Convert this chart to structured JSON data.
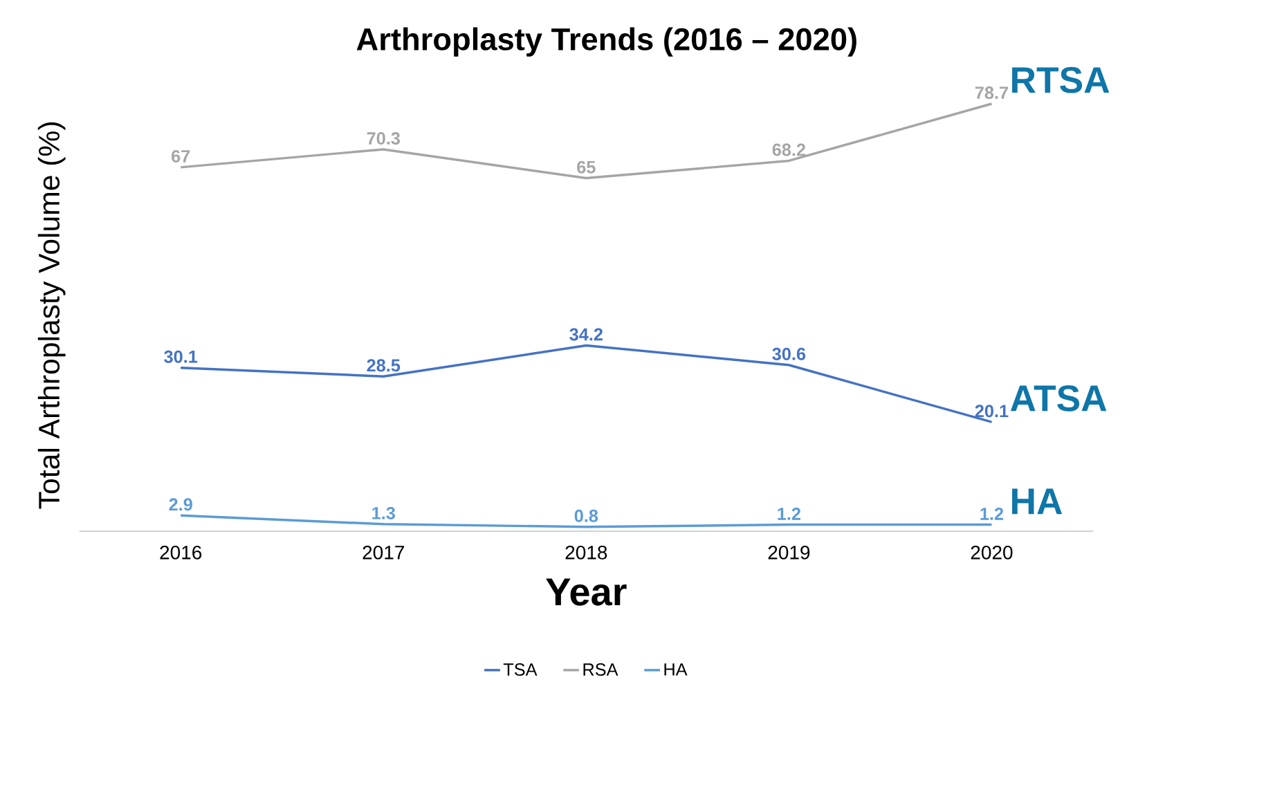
{
  "chart_data": {
    "type": "line",
    "title": "Arthroplasty Trends (2016 – 2020)",
    "xlabel": "Year",
    "ylabel": "Total Arthroplasty Volume (%)",
    "categories": [
      "2016",
      "2017",
      "2018",
      "2019",
      "2020"
    ],
    "series": [
      {
        "name": "TSA",
        "color": "#4472c4",
        "values": [
          30.1,
          28.5,
          34.2,
          30.6,
          20.1
        ]
      },
      {
        "name": "RSA",
        "color": "#a5a5a5",
        "values": [
          67,
          70.3,
          65,
          68.2,
          78.7
        ]
      },
      {
        "name": "HA",
        "color": "#5b9bd5",
        "values": [
          2.9,
          1.3,
          0.8,
          1.2,
          1.2
        ]
      }
    ],
    "data_labels": true,
    "legend": "bottom",
    "marker": "none",
    "line_style": "solid",
    "annotations": [
      {
        "text": "RTSA",
        "x": "2020",
        "y": 78.7
      },
      {
        "text": "ATSA",
        "x": "2020",
        "y": 20.1
      },
      {
        "text": "HA",
        "x": "2020",
        "y": 1.2
      }
    ]
  }
}
